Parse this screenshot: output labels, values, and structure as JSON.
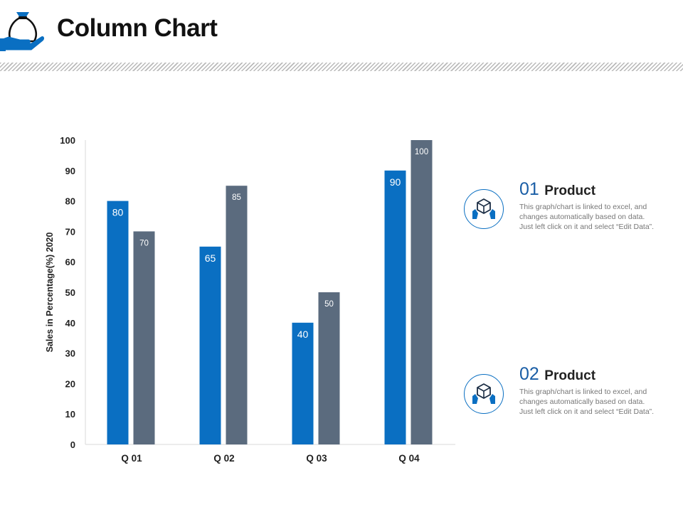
{
  "header": {
    "title": "Column Chart"
  },
  "colors": {
    "series_1": "#0a6fc2",
    "series_2": "#5b6b7e",
    "hatch": "#b9b9b9"
  },
  "icons": {
    "logo": "money-bag-on-hand-icon",
    "product": "box-in-hands-icon"
  },
  "chart_data": {
    "type": "bar",
    "categories": [
      "Q 01",
      "Q 02",
      "Q 03",
      "Q 04"
    ],
    "series": [
      {
        "values": [
          80,
          65,
          40,
          90
        ],
        "color": "#0a6fc2"
      },
      {
        "values": [
          70,
          85,
          50,
          100
        ],
        "color": "#5b6b7e"
      }
    ],
    "ylabel": "Sales in Percentage(%) 2020",
    "ylim": [
      0,
      100
    ],
    "yticks": [
      0,
      10,
      20,
      30,
      40,
      50,
      60,
      70,
      80,
      90,
      100
    ],
    "grid": false,
    "data_labels": true
  },
  "legend": [
    {
      "number": "01",
      "label": "Product",
      "text": "This graph/chart is linked to excel, and changes automatically based on data. Just left click on it and select “Edit Data”."
    },
    {
      "number": "02",
      "label": "Product",
      "text": "This graph/chart is linked to excel, and changes automatically based on data. Just left click on it and select “Edit Data”."
    }
  ]
}
